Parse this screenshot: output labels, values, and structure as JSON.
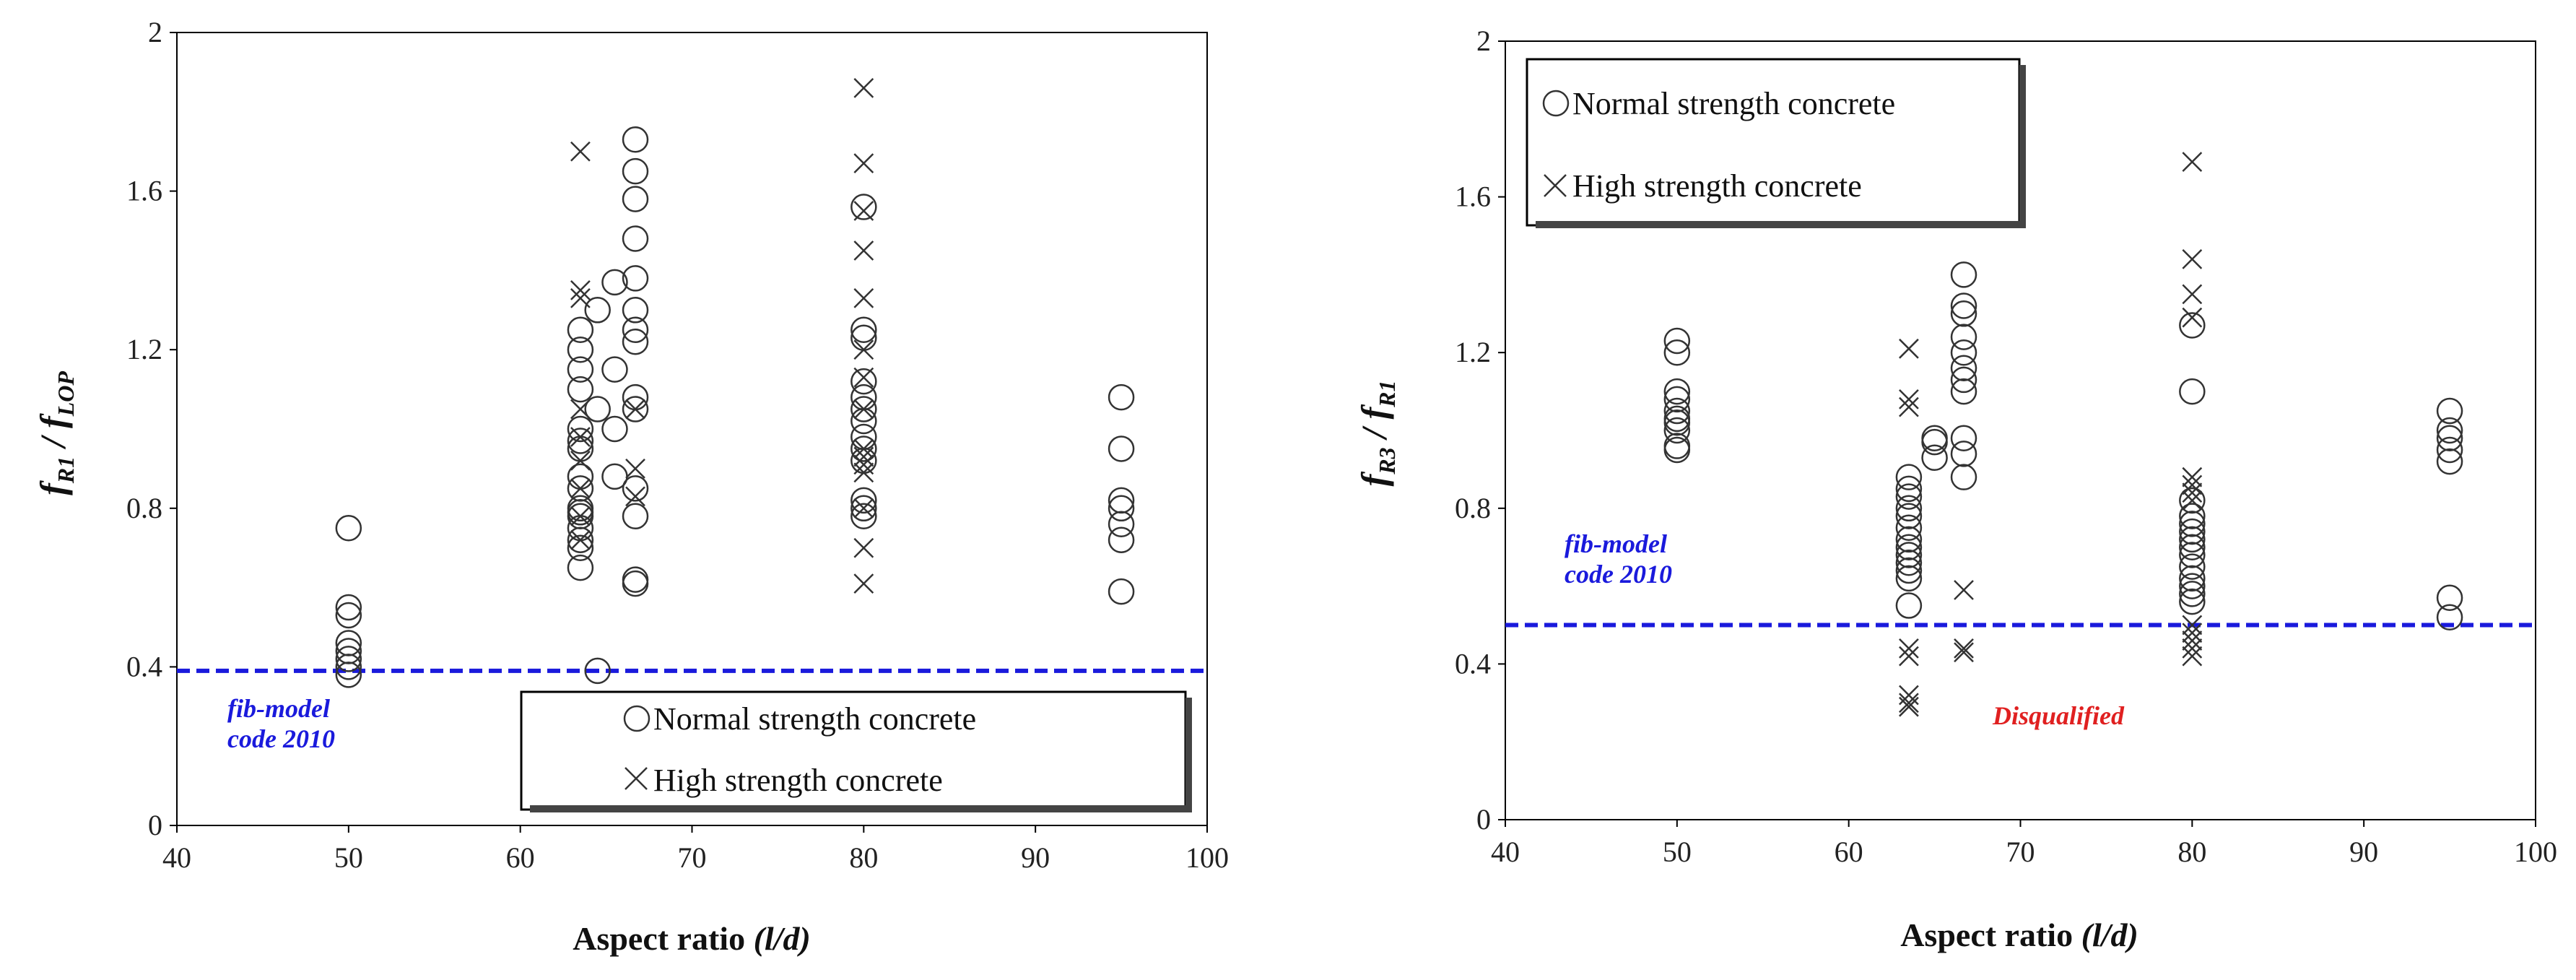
{
  "chart_data": [
    {
      "type": "scatter",
      "xlabel": "Aspect ratio",
      "xlabel_italic": "(l/d)",
      "ylabel": {
        "f1": "f",
        "sub1": "R1",
        "sep": " / ",
        "f2": "f",
        "sub2": "LOP"
      },
      "xlim": [
        40,
        100
      ],
      "ylim": [
        0,
        2
      ],
      "xticks": [
        "40",
        "50",
        "60",
        "70",
        "80",
        "90",
        "100"
      ],
      "yticks": [
        "0",
        "0.4",
        "0.8",
        "1.2",
        "1.6",
        "2"
      ],
      "legend": {
        "position": "bottom-right",
        "normal": "Normal strength concrete",
        "high": "High strength concrete"
      },
      "reference_line": {
        "y": 0.39,
        "color": "#1a1adc",
        "style": "dashed"
      },
      "annotation": {
        "line1": "fib-model",
        "line2": "code 2010"
      },
      "series": [
        {
          "name": "Normal strength concrete",
          "marker": "circle",
          "points": [
            [
              50,
              0.75
            ],
            [
              50,
              0.55
            ],
            [
              50,
              0.53
            ],
            [
              50,
              0.46
            ],
            [
              50,
              0.44
            ],
            [
              50,
              0.42
            ],
            [
              50,
              0.4
            ],
            [
              50,
              0.38
            ],
            [
              63.5,
              1.25
            ],
            [
              63.5,
              1.2
            ],
            [
              63.5,
              1.15
            ],
            [
              63.5,
              1.1
            ],
            [
              63.5,
              1.0
            ],
            [
              63.5,
              0.97
            ],
            [
              63.5,
              0.95
            ],
            [
              63.5,
              0.88
            ],
            [
              63.5,
              0.85
            ],
            [
              63.5,
              0.8
            ],
            [
              63.5,
              0.79
            ],
            [
              63.5,
              0.78
            ],
            [
              63.5,
              0.75
            ],
            [
              63.5,
              0.72
            ],
            [
              63.5,
              0.7
            ],
            [
              63.5,
              0.65
            ],
            [
              64.5,
              1.3
            ],
            [
              64.5,
              1.05
            ],
            [
              64.5,
              0.39
            ],
            [
              65.5,
              1.37
            ],
            [
              65.5,
              1.15
            ],
            [
              65.5,
              1.0
            ],
            [
              65.5,
              0.88
            ],
            [
              66.7,
              1.73
            ],
            [
              66.7,
              1.65
            ],
            [
              66.7,
              1.58
            ],
            [
              66.7,
              1.48
            ],
            [
              66.7,
              1.38
            ],
            [
              66.7,
              1.3
            ],
            [
              66.7,
              1.25
            ],
            [
              66.7,
              1.22
            ],
            [
              66.7,
              1.08
            ],
            [
              66.7,
              1.05
            ],
            [
              66.7,
              0.85
            ],
            [
              66.7,
              0.78
            ],
            [
              66.7,
              0.62
            ],
            [
              66.7,
              0.61
            ],
            [
              80,
              1.56
            ],
            [
              80,
              1.25
            ],
            [
              80,
              1.23
            ],
            [
              80,
              1.12
            ],
            [
              80,
              1.08
            ],
            [
              80,
              1.05
            ],
            [
              80,
              1.02
            ],
            [
              80,
              0.98
            ],
            [
              80,
              0.95
            ],
            [
              80,
              0.92
            ],
            [
              80,
              0.82
            ],
            [
              80,
              0.8
            ],
            [
              80,
              0.78
            ],
            [
              95,
              1.08
            ],
            [
              95,
              0.95
            ],
            [
              95,
              0.82
            ],
            [
              95,
              0.8
            ],
            [
              95,
              0.76
            ],
            [
              95,
              0.72
            ],
            [
              95,
              0.59
            ]
          ]
        },
        {
          "name": "High strength concrete",
          "marker": "x",
          "points": [
            [
              63.5,
              1.7
            ],
            [
              63.5,
              1.35
            ],
            [
              63.5,
              1.33
            ],
            [
              63.5,
              1.05
            ],
            [
              63.5,
              0.98
            ],
            [
              63.5,
              0.92
            ],
            [
              63.5,
              0.85
            ],
            [
              63.5,
              0.78
            ],
            [
              63.5,
              0.72
            ],
            [
              66.7,
              1.05
            ],
            [
              66.7,
              0.9
            ],
            [
              66.7,
              0.83
            ],
            [
              80,
              1.86
            ],
            [
              80,
              1.67
            ],
            [
              80,
              1.55
            ],
            [
              80,
              1.45
            ],
            [
              80,
              1.33
            ],
            [
              80,
              1.2
            ],
            [
              80,
              1.13
            ],
            [
              80,
              1.05
            ],
            [
              80,
              0.95
            ],
            [
              80,
              0.93
            ],
            [
              80,
              0.91
            ],
            [
              80,
              0.89
            ],
            [
              80,
              0.8
            ],
            [
              80,
              0.7
            ],
            [
              80,
              0.61
            ]
          ]
        }
      ]
    },
    {
      "type": "scatter",
      "xlabel": "Aspect ratio",
      "xlabel_italic": "(l/d)",
      "ylabel": {
        "f1": "f",
        "sub1": "R3",
        "sep": " / ",
        "f2": "f",
        "sub2": "R1"
      },
      "xlim": [
        40,
        100
      ],
      "ylim": [
        0,
        2
      ],
      "xticks": [
        "40",
        "50",
        "60",
        "70",
        "80",
        "90",
        "100"
      ],
      "yticks": [
        "0",
        "0.4",
        "0.8",
        "1.2",
        "1.6",
        "2"
      ],
      "legend": {
        "position": "top-left",
        "normal": "Normal strength concrete",
        "high": "High strength concrete"
      },
      "reference_line": {
        "y": 0.5,
        "color": "#1a1adc",
        "style": "dashed"
      },
      "annotation": {
        "line1": "fib-model",
        "line2": "code 2010"
      },
      "annotation2": "Disqualified",
      "series": [
        {
          "name": "Normal strength concrete",
          "marker": "circle",
          "points": [
            [
              50,
              1.23
            ],
            [
              50,
              1.2
            ],
            [
              50,
              1.1
            ],
            [
              50,
              1.08
            ],
            [
              50,
              1.05
            ],
            [
              50,
              1.03
            ],
            [
              50,
              1.02
            ],
            [
              50,
              1.0
            ],
            [
              50,
              0.96
            ],
            [
              50,
              0.95
            ],
            [
              63.5,
              0.88
            ],
            [
              63.5,
              0.85
            ],
            [
              63.5,
              0.83
            ],
            [
              63.5,
              0.8
            ],
            [
              63.5,
              0.78
            ],
            [
              63.5,
              0.75
            ],
            [
              63.5,
              0.72
            ],
            [
              63.5,
              0.7
            ],
            [
              63.5,
              0.68
            ],
            [
              63.5,
              0.66
            ],
            [
              63.5,
              0.64
            ],
            [
              63.5,
              0.62
            ],
            [
              63.5,
              0.55
            ],
            [
              65,
              0.98
            ],
            [
              65,
              0.97
            ],
            [
              65,
              0.93
            ],
            [
              66.7,
              1.4
            ],
            [
              66.7,
              1.32
            ],
            [
              66.7,
              1.3
            ],
            [
              66.7,
              1.24
            ],
            [
              66.7,
              1.2
            ],
            [
              66.7,
              1.16
            ],
            [
              66.7,
              1.13
            ],
            [
              66.7,
              1.1
            ],
            [
              66.7,
              0.98
            ],
            [
              66.7,
              0.94
            ],
            [
              66.7,
              0.88
            ],
            [
              80,
              1.27
            ],
            [
              80,
              1.1
            ],
            [
              80,
              0.82
            ],
            [
              80,
              0.78
            ],
            [
              80,
              0.76
            ],
            [
              80,
              0.74
            ],
            [
              80,
              0.72
            ],
            [
              80,
              0.7
            ],
            [
              80,
              0.68
            ],
            [
              80,
              0.65
            ],
            [
              80,
              0.62
            ],
            [
              80,
              0.6
            ],
            [
              80,
              0.58
            ],
            [
              80,
              0.56
            ],
            [
              95,
              1.05
            ],
            [
              95,
              1.0
            ],
            [
              95,
              0.98
            ],
            [
              95,
              0.95
            ],
            [
              95,
              0.92
            ],
            [
              95,
              0.57
            ],
            [
              95,
              0.52
            ]
          ]
        },
        {
          "name": "High strength concrete",
          "marker": "x",
          "points": [
            [
              63.5,
              1.21
            ],
            [
              63.5,
              1.08
            ],
            [
              63.5,
              1.06
            ],
            [
              63.5,
              0.44
            ],
            [
              63.5,
              0.42
            ],
            [
              63.5,
              0.32
            ],
            [
              63.5,
              0.3
            ],
            [
              63.5,
              0.29
            ],
            [
              66.7,
              0.59
            ],
            [
              66.7,
              0.44
            ],
            [
              66.7,
              0.43
            ],
            [
              80,
              1.69
            ],
            [
              80,
              1.44
            ],
            [
              80,
              1.35
            ],
            [
              80,
              1.29
            ],
            [
              80,
              0.88
            ],
            [
              80,
              0.86
            ],
            [
              80,
              0.84
            ],
            [
              80,
              0.82
            ],
            [
              80,
              0.5
            ],
            [
              80,
              0.48
            ],
            [
              80,
              0.46
            ],
            [
              80,
              0.44
            ],
            [
              80,
              0.42
            ]
          ]
        }
      ]
    }
  ]
}
